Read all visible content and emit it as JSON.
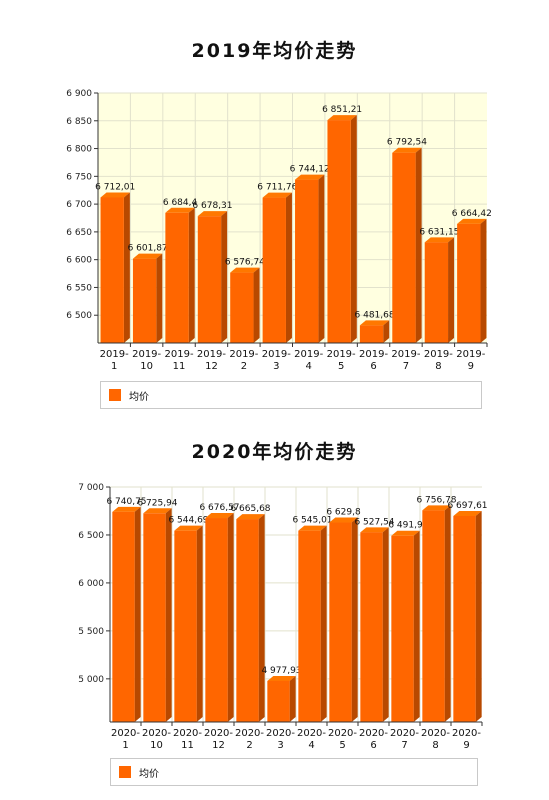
{
  "chart_data": [
    {
      "type": "bar",
      "title": "2019年均价走势",
      "categories": [
        "2019-1",
        "2019-10",
        "2019-11",
        "2019-12",
        "2019-2",
        "2019-3",
        "2019-4",
        "2019-5",
        "2019-6",
        "2019-7",
        "2019-8",
        "2019-9"
      ],
      "series": [
        {
          "name": "均价",
          "values": [
            6712.01,
            6601.87,
            6684.4,
            6678.31,
            6576.74,
            6711.76,
            6744.12,
            6851.21,
            6481.68,
            6792.54,
            6631.15,
            6664.42
          ]
        }
      ],
      "value_labels": [
        "6 712,01",
        "6 601,87",
        "6 684,4",
        "6 678,31",
        "6 576,74",
        "6 711,76",
        "6 744,12",
        "6 851,21",
        "6 481,68",
        "6 792,54",
        "6 631,15",
        "6 664,42"
      ],
      "ylim": [
        6450,
        6900
      ],
      "yticks": [
        6500,
        6550,
        6600,
        6650,
        6700,
        6750,
        6800,
        6850,
        6900
      ],
      "ytick_labels": [
        "6 500",
        "6 550",
        "6 600",
        "6 650",
        "6 700",
        "6 750",
        "6 800",
        "6 850",
        "6 900"
      ],
      "grid": true,
      "legend_position": "bottom",
      "color": "#ff6600"
    },
    {
      "type": "bar",
      "title": "2020年均价走势",
      "categories": [
        "2020-1",
        "2020-10",
        "2020-11",
        "2020-12",
        "2020-2",
        "2020-3",
        "2020-4",
        "2020-5",
        "2020-6",
        "2020-7",
        "2020-8",
        "2020-9"
      ],
      "series": [
        {
          "name": "均价",
          "values": [
            6740.75,
            6725.94,
            6544.69,
            6676.57,
            6665.68,
            4977.93,
            6545.01,
            6629.8,
            6527.54,
            6491.9,
            6756.78,
            6697.61
          ]
        }
      ],
      "value_labels": [
        "6 740,75",
        "6 725,94",
        "6 544,69",
        "6 676,57",
        "6 665,68",
        "4 977,93",
        "6 545,01",
        "6 629,8",
        "6 527,54",
        "6 491,9",
        "6 756,78",
        "6 697,61"
      ],
      "ylim": [
        4550,
        7000
      ],
      "yticks": [
        5000,
        5500,
        6000,
        6500,
        7000
      ],
      "ytick_labels": [
        "5 000",
        "5 500",
        "6 000",
        "6 500",
        "7 000"
      ],
      "grid": true,
      "legend_position": "bottom",
      "color": "#ff6600"
    }
  ]
}
